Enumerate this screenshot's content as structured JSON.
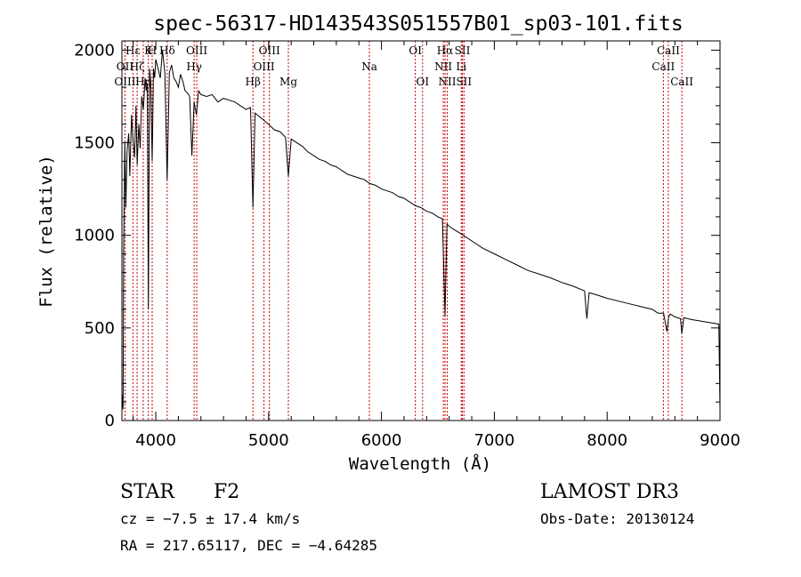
{
  "chart_data": {
    "type": "line",
    "title": "spec-56317-HD143543S051557B01_sp03-101.fits",
    "xlabel": "Wavelength (Å)",
    "ylabel": "Flux (relative)",
    "xlim": [
      3700,
      9000
    ],
    "ylim": [
      0,
      2050
    ],
    "x_ticks": [
      4000,
      5000,
      6000,
      7000,
      8000,
      9000
    ],
    "x_tick_labels": [
      "4000",
      "5000",
      "6000",
      "7000",
      "8000",
      "9000"
    ],
    "y_ticks": [
      0,
      500,
      1000,
      1500,
      2000
    ],
    "y_tick_labels": [
      "0",
      "500",
      "1000",
      "1500",
      "2000"
    ],
    "series": [
      {
        "name": "flux",
        "x": [
          3700,
          3710,
          3715,
          3725,
          3735,
          3745,
          3760,
          3770,
          3785,
          3800,
          3812,
          3825,
          3835,
          3850,
          3862,
          3875,
          3890,
          3905,
          3915,
          3925,
          3934,
          3945,
          3955,
          3968,
          3980,
          3990,
          4000,
          4020,
          4040,
          4060,
          4080,
          4101,
          4120,
          4140,
          4160,
          4180,
          4200,
          4220,
          4240,
          4260,
          4280,
          4300,
          4320,
          4340,
          4360,
          4380,
          4400,
          4450,
          4500,
          4550,
          4600,
          4650,
          4700,
          4750,
          4800,
          4840,
          4861,
          4880,
          4920,
          4960,
          5000,
          5050,
          5100,
          5150,
          5175,
          5200,
          5250,
          5300,
          5350,
          5400,
          5450,
          5500,
          5550,
          5600,
          5650,
          5700,
          5750,
          5800,
          5850,
          5895,
          5950,
          6000,
          6050,
          6100,
          6150,
          6200,
          6250,
          6300,
          6350,
          6400,
          6450,
          6500,
          6540,
          6563,
          6580,
          6620,
          6700,
          6800,
          6900,
          7000,
          7100,
          7200,
          7300,
          7400,
          7500,
          7600,
          7700,
          7800,
          7820,
          7840,
          7900,
          8000,
          8100,
          8200,
          8300,
          8400,
          8450,
          8500,
          8530,
          8545,
          8560,
          8600,
          8650,
          8662,
          8680,
          8750,
          8800,
          8850,
          8900,
          8950,
          8990,
          9000
        ],
        "values": [
          150,
          60,
          900,
          1500,
          1150,
          1450,
          1550,
          1320,
          1650,
          1500,
          1420,
          1700,
          1380,
          1600,
          1470,
          1750,
          1680,
          1850,
          1780,
          1820,
          600,
          1900,
          1830,
          1400,
          1900,
          1850,
          1950,
          1900,
          1850,
          2000,
          1880,
          1300,
          1880,
          1920,
          1850,
          1830,
          1800,
          1870,
          1830,
          1780,
          1770,
          1750,
          1430,
          1720,
          1650,
          1780,
          1760,
          1750,
          1760,
          1720,
          1740,
          1730,
          1720,
          1700,
          1680,
          1690,
          1150,
          1660,
          1640,
          1620,
          1600,
          1570,
          1560,
          1530,
          1320,
          1520,
          1500,
          1480,
          1450,
          1430,
          1410,
          1400,
          1380,
          1370,
          1350,
          1330,
          1320,
          1310,
          1300,
          1280,
          1270,
          1250,
          1240,
          1230,
          1210,
          1200,
          1180,
          1160,
          1150,
          1130,
          1120,
          1100,
          1090,
          560,
          1060,
          1040,
          1010,
          970,
          930,
          900,
          870,
          840,
          810,
          790,
          770,
          745,
          725,
          700,
          550,
          690,
          680,
          660,
          645,
          630,
          615,
          600,
          580,
          580,
          480,
          560,
          575,
          560,
          550,
          470,
          555,
          545,
          540,
          535,
          530,
          525,
          520,
          60
        ]
      }
    ],
    "line_markers": [
      {
        "label": "Hε",
        "x": 3797,
        "row": 1
      },
      {
        "label": "OII",
        "x": 3727,
        "row": 2
      },
      {
        "label": "Hζ",
        "x": 3835,
        "row": 2
      },
      {
        "label": "OIII",
        "x": 3727,
        "row": 3
      },
      {
        "label": "Hη",
        "x": 3889,
        "row": 3
      },
      {
        "label": "K",
        "x": 3934,
        "row": 1
      },
      {
        "label": "H",
        "x": 3968,
        "row": 1
      },
      {
        "label": "Hδ",
        "x": 4101,
        "row": 1
      },
      {
        "label": "OIII",
        "x": 4363,
        "row": 1
      },
      {
        "label": "Hγ",
        "x": 4340,
        "row": 2
      },
      {
        "label": "Hβ",
        "x": 4861,
        "row": 3
      },
      {
        "label": "OIII",
        "x": 5007,
        "row": 1
      },
      {
        "label": "OIII",
        "x": 4959,
        "row": 2
      },
      {
        "label": "Mg",
        "x": 5175,
        "row": 3
      },
      {
        "label": "Na",
        "x": 5893,
        "row": 2
      },
      {
        "label": "OI",
        "x": 6300,
        "row": 1
      },
      {
        "label": "OI",
        "x": 6364,
        "row": 3
      },
      {
        "label": "Hα",
        "x": 6563,
        "row": 1
      },
      {
        "label": "NII",
        "x": 6548,
        "row": 2
      },
      {
        "label": "NII",
        "x": 6583,
        "row": 3
      },
      {
        "label": "SII",
        "x": 6717,
        "row": 1
      },
      {
        "label": "Li",
        "x": 6707,
        "row": 2
      },
      {
        "label": "SII",
        "x": 6731,
        "row": 3
      },
      {
        "label": "CaII",
        "x": 8542,
        "row": 1
      },
      {
        "label": "CaII",
        "x": 8498,
        "row": 2
      },
      {
        "label": "CaII",
        "x": 8662,
        "row": 3
      }
    ],
    "marker_color": "#cc0000",
    "line_color": "#000000"
  },
  "info": {
    "object_class": "STAR",
    "subclass": "F2",
    "redshift": "cz = −7.5 ± 17.4 km/s",
    "coords": "RA = 217.65117, DEC =  −4.64285",
    "survey": "LAMOST DR3",
    "obs_date": "Obs-Date: 20130124"
  }
}
